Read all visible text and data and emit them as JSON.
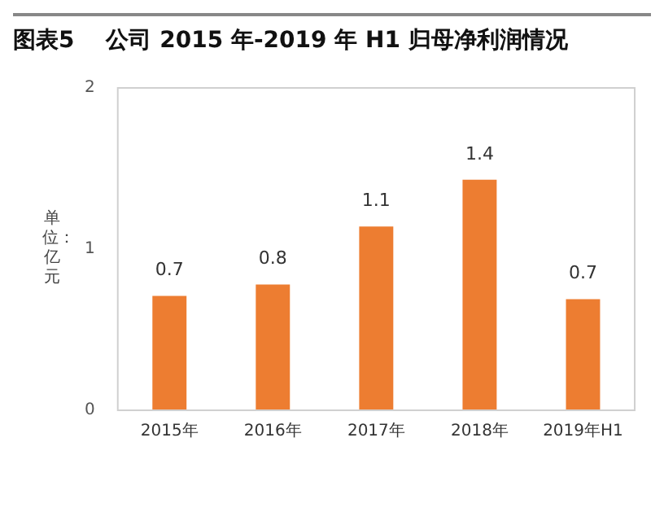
{
  "chart_data": {
    "type": "bar",
    "title": "图表5    公司 2015 年-2019 年 H1 归母净利润情况",
    "ylabel": "单位：亿元",
    "categories": [
      "2015年",
      "2016年",
      "2017年",
      "2018年",
      "2019年H1"
    ],
    "values": [
      0.71,
      0.78,
      1.14,
      1.43,
      0.69
    ],
    "value_labels": [
      "0.7",
      "0.8",
      "1.1",
      "1.4",
      "0.7"
    ],
    "color": "#ed7d31",
    "ylim": [
      0,
      2
    ],
    "yticks": [
      0,
      1,
      2
    ],
    "grid": false
  }
}
